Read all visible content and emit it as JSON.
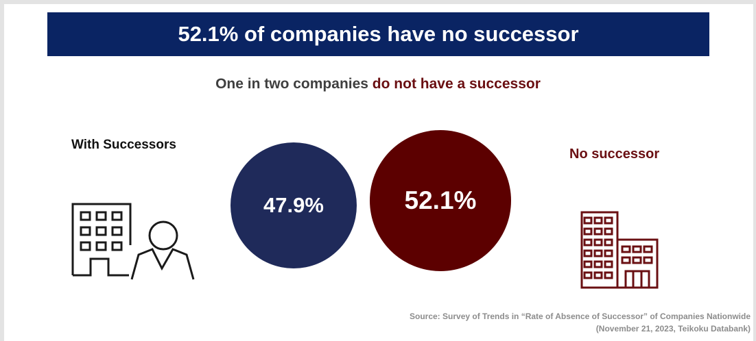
{
  "banner": {
    "title": "52.1% of companies have no successor"
  },
  "subtitle": {
    "prefix": "One in two companies ",
    "highlight": "do not have a successor"
  },
  "with_successors": {
    "label": "With Successors",
    "percent": "47.9%",
    "value": 47.9,
    "color": "#1f2a5a",
    "icon": "building-with-person-icon"
  },
  "no_successor": {
    "label": "No successor",
    "percent": "52.1%",
    "value": 52.1,
    "color": "#5c0000",
    "icon": "buildings-icon"
  },
  "colors": {
    "banner_bg": "#0a2463",
    "highlight": "#6a0f12"
  },
  "source": {
    "line1": "Source: Survey of Trends in “Rate of Absence of Successor” of Companies Nationwide",
    "line2": "(November 21, 2023, Teikoku Databank)"
  }
}
